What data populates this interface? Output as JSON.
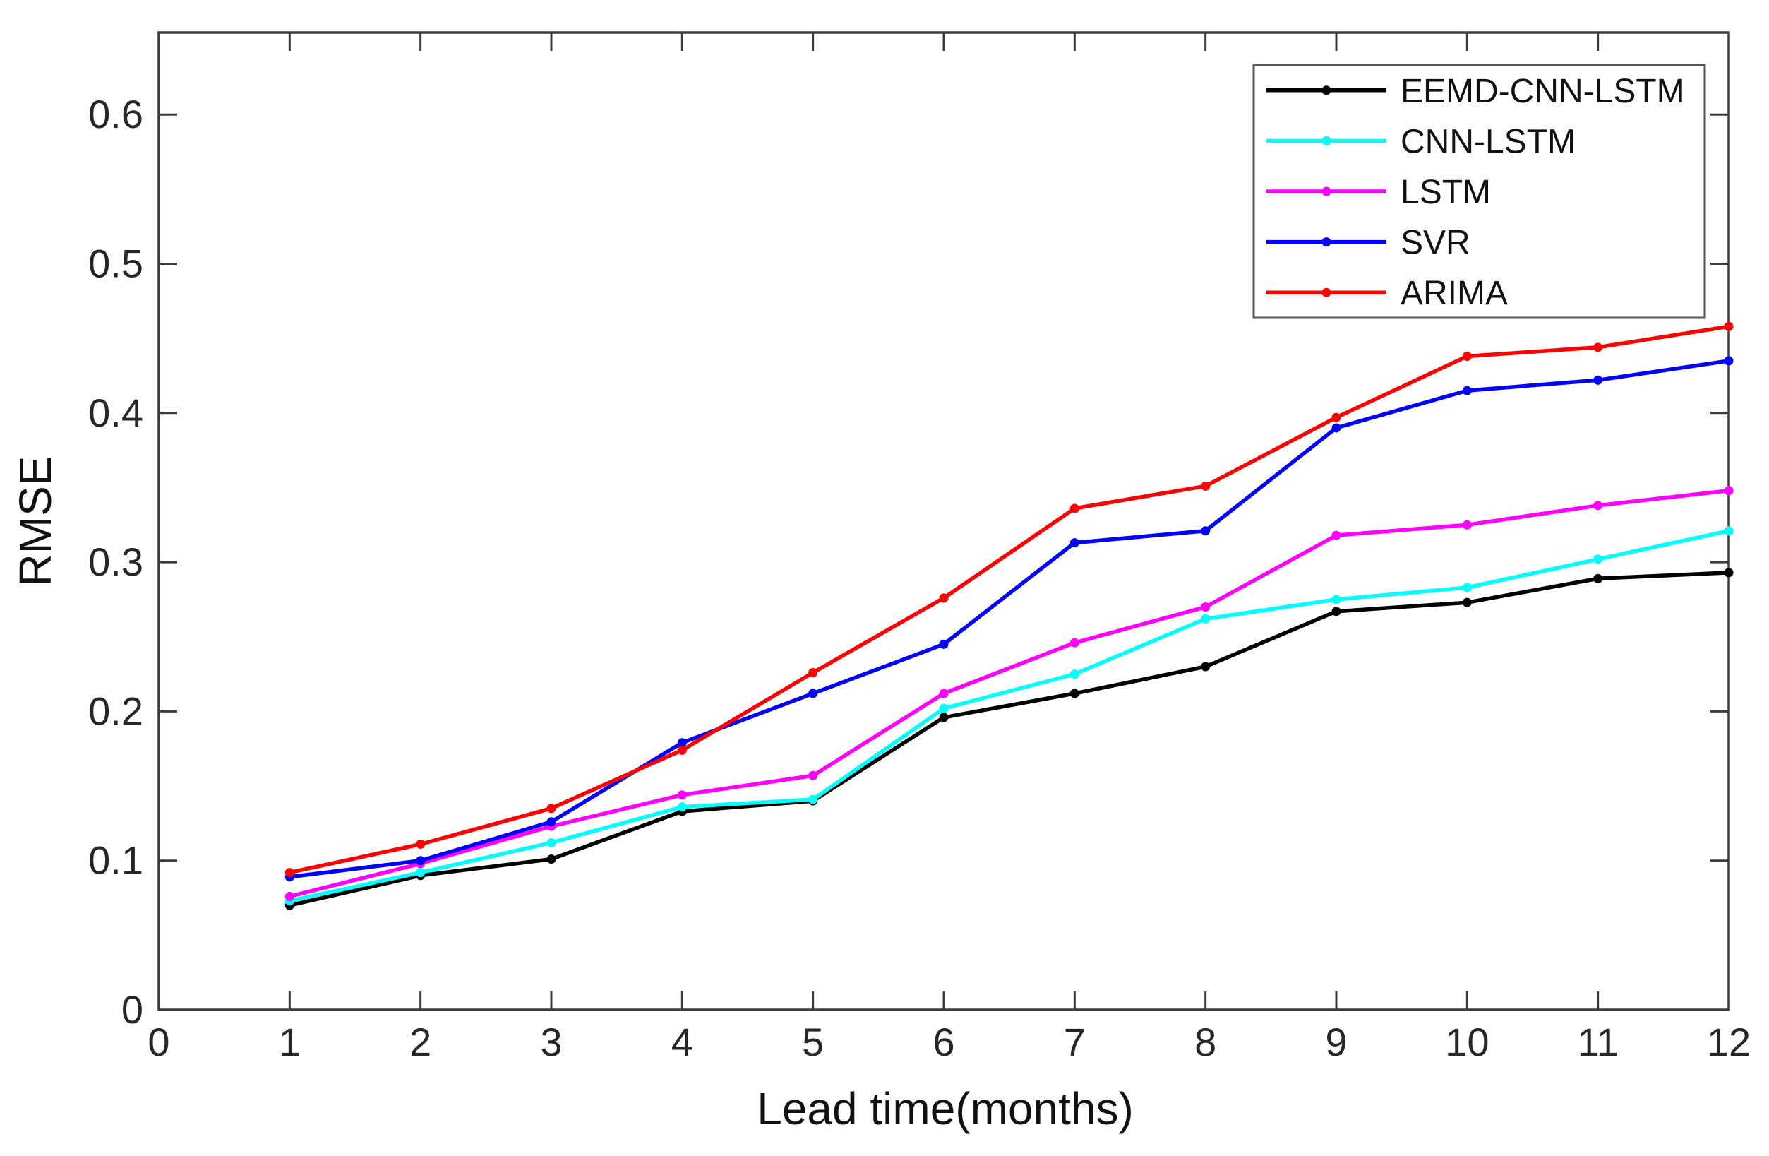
{
  "figure": {
    "background": "#ffffff",
    "axis_color": "#3c3c3c",
    "tick_label_color": "#262626"
  },
  "chart_data": {
    "type": "line",
    "title": "",
    "xlabel": "Lead time(months)",
    "ylabel": "RMSE",
    "x": [
      1,
      2,
      3,
      4,
      5,
      6,
      7,
      8,
      9,
      10,
      11,
      12
    ],
    "series": [
      {
        "name": "EEMD-CNN-LSTM",
        "color": "#000000",
        "values": [
          0.07,
          0.09,
          0.101,
          0.133,
          0.14,
          0.196,
          0.212,
          0.23,
          0.267,
          0.273,
          0.289,
          0.293
        ]
      },
      {
        "name": "CNN-LSTM",
        "color": "#00ffff",
        "values": [
          0.073,
          0.092,
          0.112,
          0.136,
          0.141,
          0.202,
          0.225,
          0.262,
          0.275,
          0.283,
          0.302,
          0.321
        ]
      },
      {
        "name": "LSTM",
        "color": "#ff00ff",
        "values": [
          0.076,
          0.098,
          0.123,
          0.144,
          0.157,
          0.212,
          0.246,
          0.27,
          0.318,
          0.325,
          0.338,
          0.348
        ]
      },
      {
        "name": "SVR",
        "color": "#0000ff",
        "values": [
          0.089,
          0.1,
          0.126,
          0.179,
          0.212,
          0.245,
          0.313,
          0.321,
          0.39,
          0.415,
          0.422,
          0.435
        ]
      },
      {
        "name": "ARIMA",
        "color": "#ff0000",
        "values": [
          0.092,
          0.111,
          0.135,
          0.174,
          0.226,
          0.276,
          0.336,
          0.351,
          0.397,
          0.438,
          0.444,
          0.458
        ]
      }
    ],
    "xlim": [
      0,
      12
    ],
    "ylim": [
      0,
      0.65
    ],
    "xticks": [
      0,
      1,
      2,
      3,
      4,
      5,
      6,
      7,
      8,
      9,
      10,
      11,
      12
    ],
    "yticks": [
      0,
      0.1,
      0.2,
      0.3,
      0.4,
      0.5,
      0.6
    ],
    "ytick_labels": [
      "0",
      "0.1",
      "0.2",
      "0.3",
      "0.4",
      "0.5",
      "0.6"
    ],
    "grid": false,
    "legend_position": "top-right",
    "marker": "dot"
  }
}
